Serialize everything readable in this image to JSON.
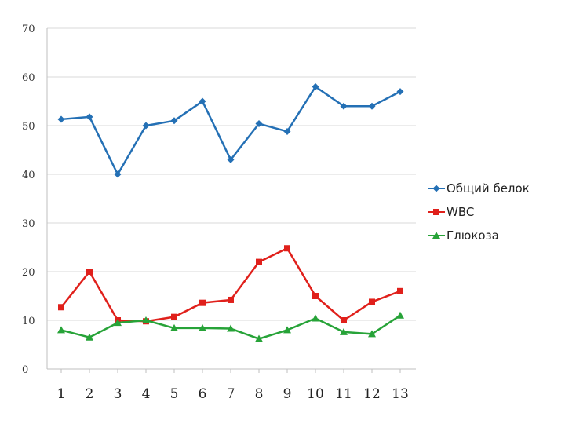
{
  "chart_data": {
    "type": "line",
    "categories": [
      "1",
      "2",
      "3",
      "4",
      "5",
      "6",
      "7",
      "8",
      "9",
      "10",
      "11",
      "12",
      "13"
    ],
    "ylim": [
      0,
      70
    ],
    "yticks": [
      "0",
      "10",
      "20",
      "30",
      "40",
      "50",
      "60",
      "70"
    ],
    "grid": true,
    "legend_position": "right",
    "series": [
      {
        "name": "Общий белок",
        "color": "#2470b5",
        "marker": "diamond",
        "values": [
          51.3,
          51.8,
          40,
          50,
          51,
          55,
          43,
          50.4,
          48.8,
          58,
          54,
          54,
          57
        ]
      },
      {
        "name": "WBC",
        "color": "#e0201b",
        "marker": "square",
        "values": [
          12.7,
          20,
          10,
          9.8,
          10.7,
          13.6,
          14.2,
          22,
          24.8,
          15,
          10,
          13.8,
          16
        ]
      },
      {
        "name": "Глюкоза",
        "color": "#27a338",
        "marker": "triangle",
        "values": [
          8,
          6.5,
          9.5,
          10,
          8.4,
          8.4,
          8.3,
          6.2,
          8,
          10.4,
          7.6,
          7.2,
          11
        ]
      }
    ]
  }
}
